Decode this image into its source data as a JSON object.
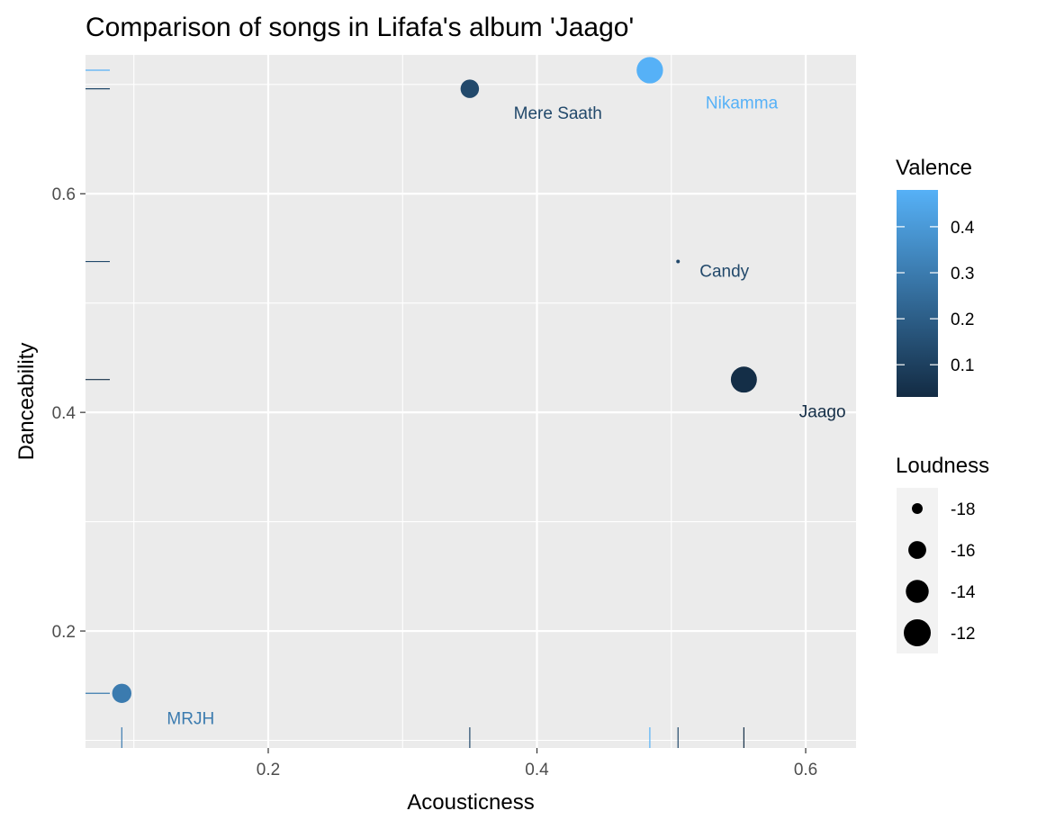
{
  "chart_data": {
    "type": "scatter",
    "title": "Comparison of songs in Lifafa's album 'Jaago'",
    "xlabel": "Acousticness",
    "ylabel": "Danceability",
    "xlim": [
      0.064,
      0.6375
    ],
    "ylim": [
      0.093,
      0.727
    ],
    "x_ticks": [
      {
        "value": 0.2,
        "label": "0.2"
      },
      {
        "value": 0.4,
        "label": "0.4"
      },
      {
        "value": 0.6,
        "label": "0.6"
      }
    ],
    "y_ticks": [
      {
        "value": 0.2,
        "label": "0.2"
      },
      {
        "value": 0.4,
        "label": "0.4"
      },
      {
        "value": 0.6,
        "label": "0.6"
      }
    ],
    "grid": true,
    "rug": true,
    "points": [
      {
        "label": "Nikamma",
        "acousticness": 0.484,
        "danceability": 0.713,
        "valence": 0.48,
        "loudness": -12.3
      },
      {
        "label": "Mere Saath",
        "acousticness": 0.35,
        "danceability": 0.696,
        "valence": 0.13,
        "loudness": -15.8
      },
      {
        "label": "Candy",
        "acousticness": 0.505,
        "danceability": 0.538,
        "valence": 0.13,
        "loudness": -19.0
      },
      {
        "label": "Jaago",
        "acousticness": 0.554,
        "danceability": 0.43,
        "valence": 0.04,
        "loudness": -12.5
      },
      {
        "label": "MRJH",
        "acousticness": 0.091,
        "danceability": 0.143,
        "valence": 0.3,
        "loudness": -15.5
      }
    ],
    "legend": {
      "placement": "right",
      "color": {
        "title": "Valence",
        "range": [
          0.03,
          0.48
        ],
        "low_color": "#132B43",
        "high_color": "#56B1F7",
        "ticks": [
          {
            "value": 0.4,
            "label": "0.4"
          },
          {
            "value": 0.3,
            "label": "0.3"
          },
          {
            "value": 0.2,
            "label": "0.2"
          },
          {
            "value": 0.1,
            "label": "0.1"
          }
        ]
      },
      "size": {
        "title": "Loudness",
        "range": [
          -19.0,
          -12.0
        ],
        "entries": [
          {
            "value": -18,
            "label": "-18"
          },
          {
            "value": -16,
            "label": "-16"
          },
          {
            "value": -14,
            "label": "-14"
          },
          {
            "value": -12,
            "label": "-12"
          }
        ]
      }
    }
  }
}
